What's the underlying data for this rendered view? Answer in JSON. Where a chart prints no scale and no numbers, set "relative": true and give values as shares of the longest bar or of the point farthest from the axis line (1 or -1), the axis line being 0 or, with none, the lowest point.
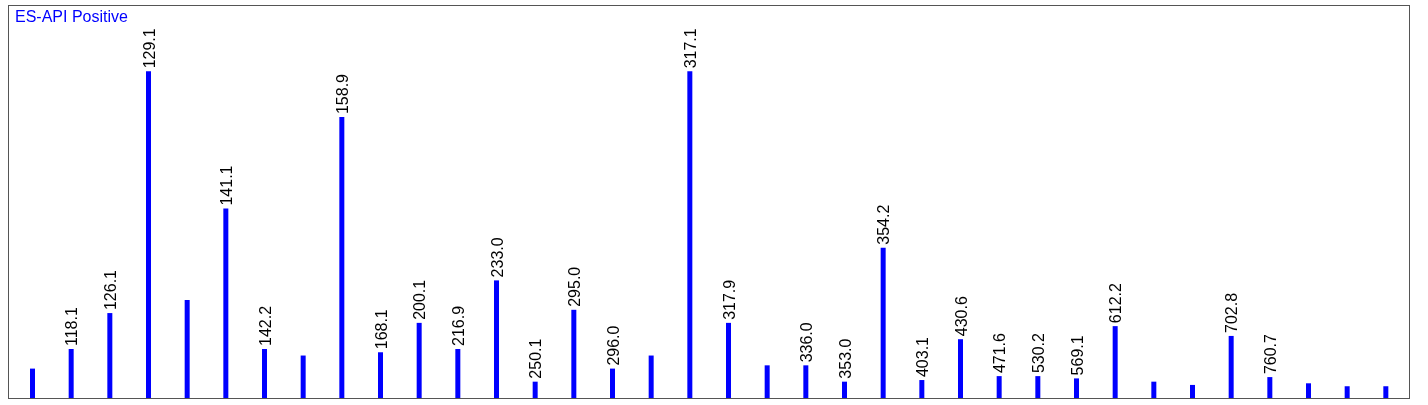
{
  "chart_data": {
    "type": "bar",
    "title": "ES-API Positive",
    "relative": true,
    "categories": [
      null,
      null,
      null,
      null,
      null,
      null,
      null,
      null,
      null,
      null,
      null,
      null,
      null,
      null,
      null,
      null,
      null,
      null,
      null,
      null,
      null,
      null,
      null,
      null,
      null,
      null,
      null,
      null,
      null,
      null,
      null,
      null,
      null,
      null,
      null,
      null
    ],
    "series": [
      {
        "color": "#0000ff",
        "values": [
          0.09,
          0.15,
          0.26,
          1.0,
          0.3,
          0.58,
          0.15,
          0.13,
          0.86,
          0.14,
          0.23,
          0.15,
          0.36,
          0.05,
          0.27,
          0.09,
          0.13,
          1.0,
          0.23,
          0.1,
          0.1,
          0.05,
          0.46,
          0.055,
          0.18,
          0.067,
          0.067,
          0.06,
          0.22,
          0.05,
          0.04,
          0.19,
          0.064,
          0.045,
          0.036,
          0.036
        ]
      }
    ],
    "value_labels": [
      null,
      "118.1",
      "126.1",
      "129.1",
      null,
      "141.1",
      "142.2",
      null,
      "158.9",
      "168.1",
      "200.1",
      "216.9",
      "233.0",
      "250.1",
      "295.0",
      "296.0",
      null,
      "317.1",
      "317.9",
      null,
      "336.0",
      "353.0",
      "354.2",
      "403.1",
      "430.6",
      "471.6",
      "530.2",
      "569.1",
      "612.2",
      null,
      null,
      "702.8",
      "760.7",
      null,
      null,
      null
    ]
  }
}
